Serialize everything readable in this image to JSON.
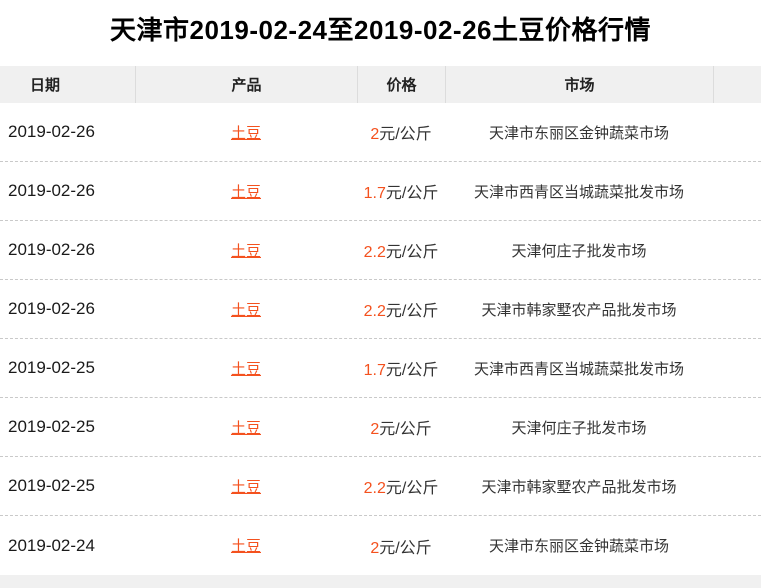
{
  "page": {
    "title": "天津市2019-02-24至2019-02-26土豆价格行情"
  },
  "colors": {
    "accent": "#f4511e",
    "header_bg": "#f0f0f0",
    "row_divider": "#c9c9c9",
    "body_text": "#333333"
  },
  "table": {
    "headers": [
      "日期",
      "产品",
      "价格",
      "市场"
    ],
    "rows": [
      {
        "date": "2019-02-26",
        "product": "土豆",
        "price_value": "2",
        "price_unit": "元/公斤",
        "market": "天津市东丽区金钟蔬菜市场"
      },
      {
        "date": "2019-02-26",
        "product": "土豆",
        "price_value": "1.7",
        "price_unit": "元/公斤",
        "market": "天津市西青区当城蔬菜批发市场"
      },
      {
        "date": "2019-02-26",
        "product": "土豆",
        "price_value": "2.2",
        "price_unit": "元/公斤",
        "market": "天津何庄子批发市场"
      },
      {
        "date": "2019-02-26",
        "product": "土豆",
        "price_value": "2.2",
        "price_unit": "元/公斤",
        "market": "天津市韩家墅农产品批发市场"
      },
      {
        "date": "2019-02-25",
        "product": "土豆",
        "price_value": "1.7",
        "price_unit": "元/公斤",
        "market": "天津市西青区当城蔬菜批发市场"
      },
      {
        "date": "2019-02-25",
        "product": "土豆",
        "price_value": "2",
        "price_unit": "元/公斤",
        "market": "天津何庄子批发市场"
      },
      {
        "date": "2019-02-25",
        "product": "土豆",
        "price_value": "2.2",
        "price_unit": "元/公斤",
        "market": "天津市韩家墅农产品批发市场"
      },
      {
        "date": "2019-02-24",
        "product": "土豆",
        "price_value": "2",
        "price_unit": "元/公斤",
        "market": "天津市东丽区金钟蔬菜市场"
      }
    ]
  }
}
